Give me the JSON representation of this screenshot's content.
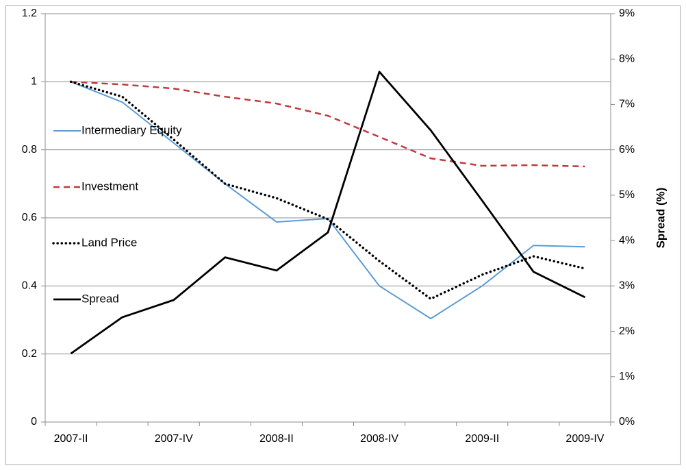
{
  "chart_data": {
    "type": "line",
    "categories": [
      "2007-II",
      null,
      "2007-IV",
      null,
      "2008-II",
      null,
      "2008-IV",
      null,
      "2009-II",
      null,
      "2009-IV"
    ],
    "series": [
      {
        "name": "Intermediary Equity",
        "color": "#5b9bd5",
        "style": "solid",
        "values": [
          1.0,
          0.94,
          0.82,
          0.7,
          0.588,
          0.598,
          0.4,
          0.304,
          0.4,
          0.519,
          0.515
        ]
      },
      {
        "name": "Investment",
        "color": "#c0393b",
        "style": "dashed",
        "values": [
          1.0,
          0.992,
          0.98,
          0.956,
          0.936,
          0.9,
          0.838,
          0.775,
          0.753,
          0.755,
          0.751
        ]
      },
      {
        "name": "Land Price",
        "color": "#000000",
        "style": "dotted",
        "values": [
          1.0,
          0.956,
          0.83,
          0.7,
          0.658,
          0.596,
          0.473,
          0.362,
          0.433,
          0.487,
          0.451
        ]
      },
      {
        "name": "Spread",
        "color": "#000000",
        "style": "solid",
        "axis": "y2",
        "values": [
          1.51,
          2.31,
          2.69,
          3.63,
          3.34,
          4.18,
          7.72,
          6.43,
          4.88,
          3.31,
          2.75
        ]
      }
    ],
    "ylim": [
      0,
      1.2
    ],
    "yticks": [
      0,
      0.2,
      0.4,
      0.6,
      0.8,
      1,
      1.2
    ],
    "y2lim": [
      0,
      9
    ],
    "y2ticks": [
      {
        "value": 0,
        "label": "0%"
      },
      {
        "value": 1,
        "label": "1%"
      },
      {
        "value": 2,
        "label": "2%"
      },
      {
        "value": 3,
        "label": "3%"
      },
      {
        "value": 4,
        "label": "4%"
      },
      {
        "value": 5,
        "label": "5%"
      },
      {
        "value": 6,
        "label": "6%"
      },
      {
        "value": 7,
        "label": "7%"
      },
      {
        "value": 8,
        "label": "8%"
      },
      {
        "value": 9,
        "label": "9%"
      }
    ],
    "y2label": "Spread (%)",
    "grid": true,
    "legend": "left"
  }
}
